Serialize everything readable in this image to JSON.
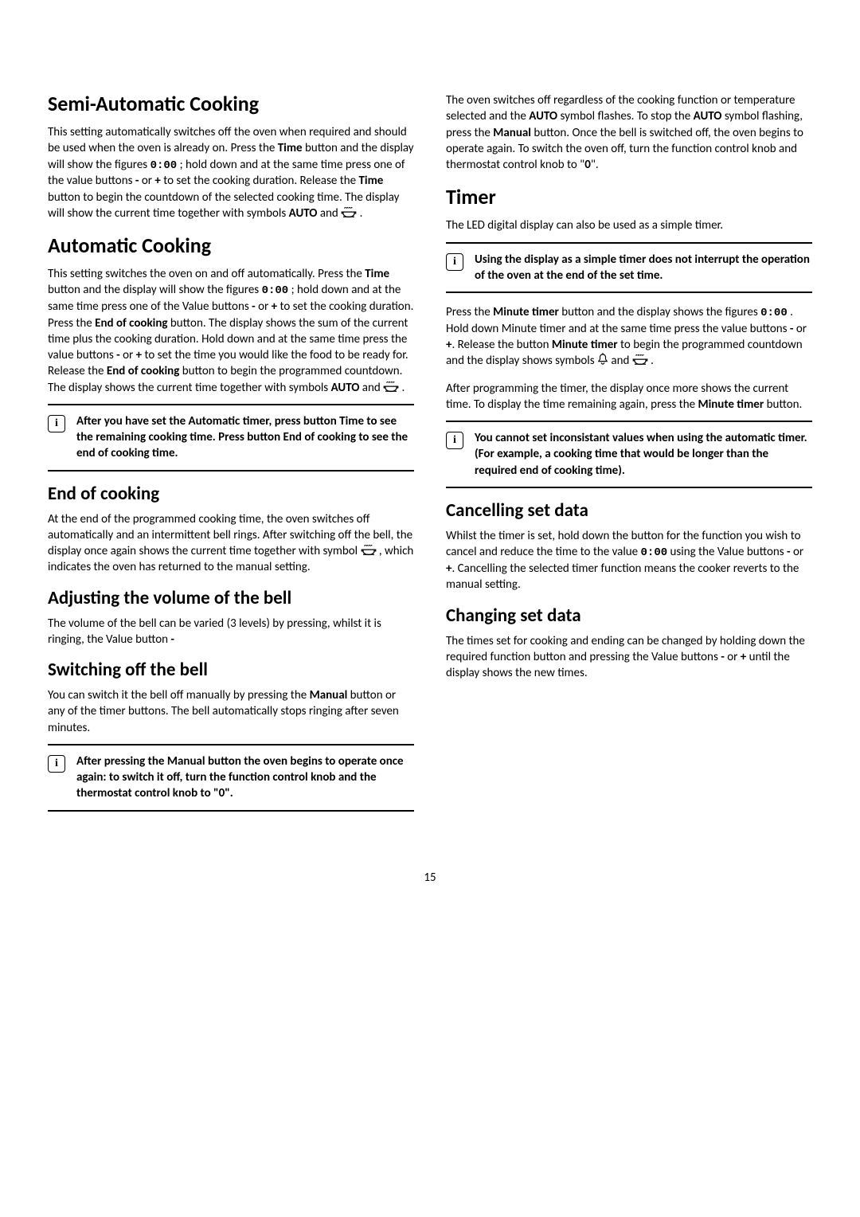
{
  "page_number": "15",
  "left": {
    "h_semi": "Semi-Automatic Cooking",
    "p_semi": "This setting automatically switches off the oven when required and should be used when the oven is already on. Press the <b>Time</b> button and the display will show the figures {digits} ; hold down and at the same time press one of the value buttons <b>-</b> or <b>+</b> to set the cooking duration. Release the <b>Time</b>  button to begin the countdown of the selected cooking time. The display will show the current time together with symbols <b>AUTO</b> and {pot} .",
    "h_auto": "Automatic Cooking",
    "p_auto": "This setting switches the oven on and off automatically. Press the <b>Time</b> button and the display will show the figures {digits} ; hold down and at the same time press one of the Value buttons <b>-</b> or <b>+</b> to set the cooking duration. Press the <b>End of cooking</b> button. The display shows the sum of the current time plus the cooking duration. Hold down and at the same time press the value buttons <b>-</b> or <b>+</b> to set the time you would like the food to be ready for. Release the <b>End of cooking</b> button to begin the programmed countdown. The display shows the current time together with symbols <b>AUTO</b> and {pot} .",
    "info_auto": "After you have set the Automatic timer, press button Time to see the remaining cooking time. Press button End of cooking to see the end of cooking time.",
    "h_end": "End of cooking",
    "p_end": "At the end of the programmed cooking time, the oven switches off automatically and an intermittent bell rings. After switching off the bell, the display once again shows the current time together with symbol {pot} , which indicates the oven has returned to the manual setting.",
    "h_volume": "Adjusting the volume of the bell",
    "p_volume": "The volume of the bell can be varied (3 levels) by pressing, whilst it is ringing, the Value button <b>-</b>",
    "h_switchoff": "Switching off the bell",
    "p_switchoff": "You can switch it the bell off manually by pressing the <b>Manual</b> button or any of the timer buttons. The bell automatically stops ringing after seven minutes.",
    "info_manual": "After pressing the Manual button the oven begins to operate once again: to switch it off, turn the function control knob and the thermostat control knob to \"0\"."
  },
  "right": {
    "p_intro": "The oven switches off regardless of the cooking function or temperature selected and the <b>AUTO</b> symbol flashes. To stop the <b>AUTO</b> symbol flashing, press the <b>Manual</b> button. Once the bell is switched off, the oven begins to operate again. To switch the oven off, turn the function control knob and thermostat control knob to \"<b>0</b>\".",
    "h_timer": "Timer",
    "p_timer": "The LED digital display can also be used as a simple timer.",
    "info_timer": "Using the display as a simple timer does not interrupt the operation of the oven at the end of the set time.",
    "p_minute1": "Press the <b>Minute timer</b> button and the display shows the figures {digits} . Hold down Minute timer and at the same time press the value buttons <b>-</b> or <b>+</b>. Release the button <b>Minute timer</b> to begin the programmed countdown and the display shows symbols {bell} and {pot} .",
    "p_minute2": "After programming the timer, the display once more shows the current time. To display the time remaining again, press the <b>Minute timer</b> button.",
    "info_inconsistent": "You cannot set inconsistant values when using the automatic timer. (For example, a cooking time that would be longer than the required end of cooking time).",
    "h_cancel": "Cancelling set data",
    "p_cancel": "Whilst the timer is set, hold down the button for the function you wish to cancel and reduce the time to the value {digits} using the Value  buttons <b>-</b> or <b>+</b>. Cancelling the selected timer function means the cooker reverts to the manual setting.",
    "h_change": "Changing set data",
    "p_change": "The times set for cooking and ending can be changed by holding down the required function button and pressing the Value buttons <b>-</b> or <b>+</b> until the display shows the new times."
  },
  "icons": {
    "digits_text": "0:00",
    "info_char": "i"
  }
}
